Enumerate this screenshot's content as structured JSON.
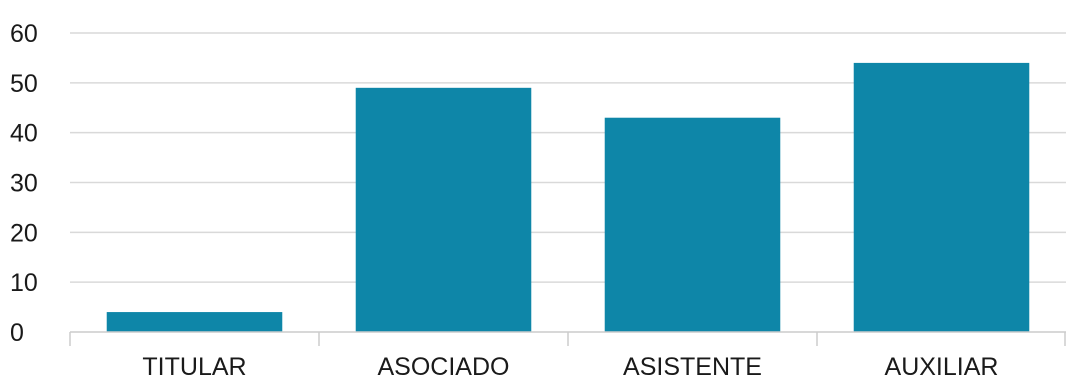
{
  "chart_data": {
    "type": "bar",
    "categories": [
      "TITULAR",
      "ASOCIADO",
      "ASISTENTE",
      "AUXILIAR"
    ],
    "values": [
      4,
      49,
      43,
      54
    ],
    "title": "",
    "xlabel": "",
    "ylabel": "",
    "ylim": [
      0,
      60
    ],
    "yticks": [
      0,
      10,
      20,
      30,
      40,
      50,
      60
    ],
    "grid": true,
    "legend": "none",
    "bar_color": "#0e86a8",
    "grid_color": "#d9d9d9",
    "axis_color": "#cccccc"
  }
}
